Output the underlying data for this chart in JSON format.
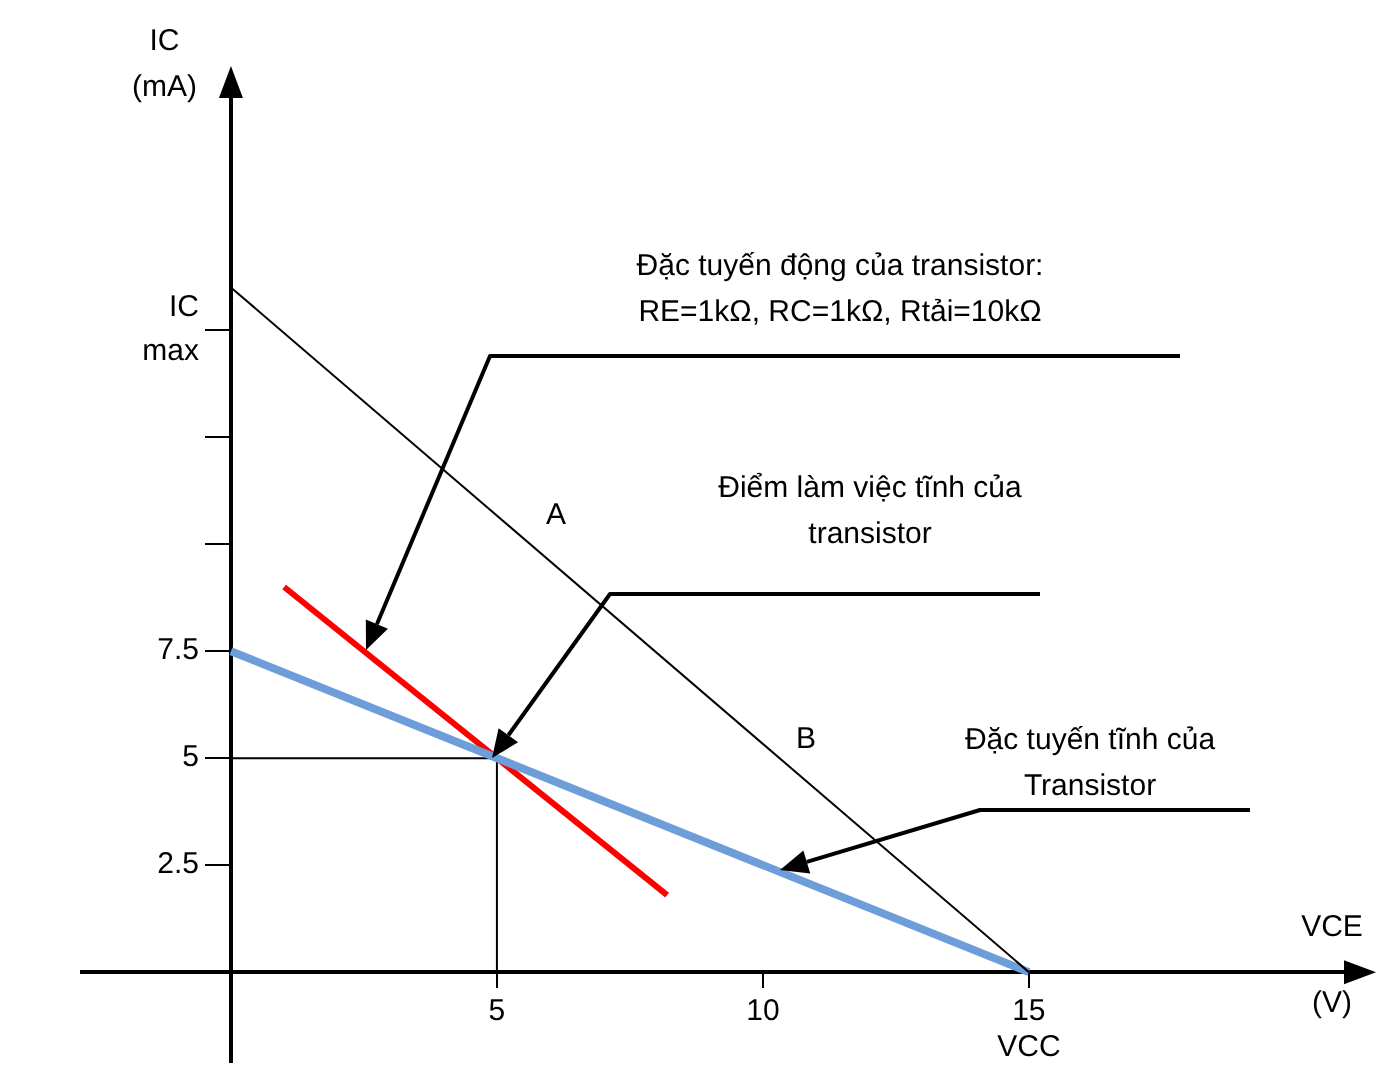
{
  "chart_data": {
    "type": "line",
    "xlabel": "VCE\n(V)",
    "ylabel": "IC\n(mA)",
    "xlim": [
      -2.8,
      21.3
    ],
    "ylim": [
      -2.1,
      20.8
    ],
    "xticks": [
      5,
      10,
      {
        "value": 15,
        "label": "15\nVCC"
      }
    ],
    "yticks": [
      2.5,
      5,
      7.5,
      {
        "value": 10,
        "label": null
      },
      {
        "value": 12.5,
        "label": null
      },
      {
        "value": 15,
        "label": "IC\nmax"
      }
    ],
    "grid": false,
    "legend": false,
    "marker": "none",
    "series": [
      {
        "color": "#000000",
        "x": [
          0,
          15
        ],
        "values": [
          16,
          0
        ]
      },
      {
        "color": "#6d9eda",
        "x": [
          0,
          15
        ],
        "values": [
          7.5,
          0
        ]
      },
      {
        "color": "#ff0000",
        "x": [
          1,
          8.2
        ],
        "values": [
          9,
          1.8
        ]
      },
      {
        "color": "#000000",
        "x": [
          0,
          5,
          5
        ],
        "values": [
          5,
          5,
          0
        ]
      }
    ],
    "annotations": [
      "A",
      "B",
      "Đặc tuyến động của transistor:\nRE=1kΩ, RC=1kΩ, Rtải=10kΩ",
      "Điểm làm việc tĩnh của\ntransistor",
      "Đặc tuyến tĩnh của\nTransistor"
    ]
  }
}
